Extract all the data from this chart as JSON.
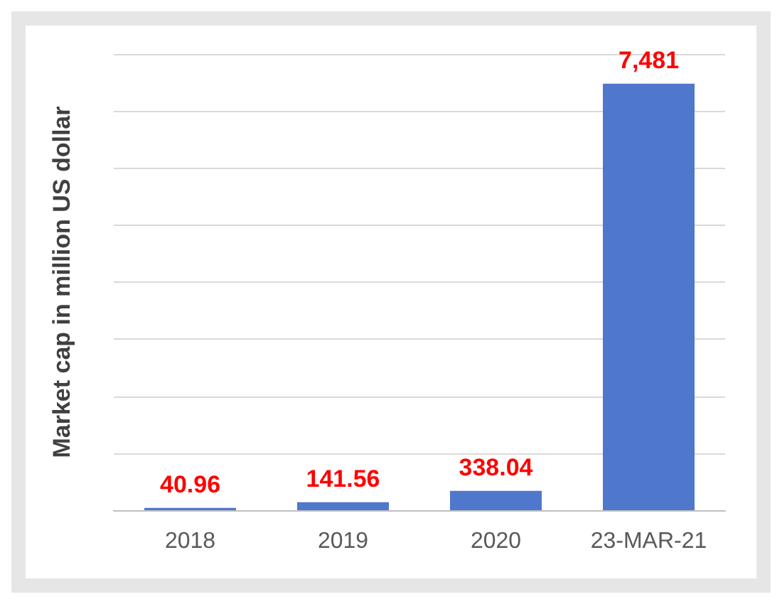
{
  "chart_data": {
    "type": "bar",
    "ylabel": "Market cap in million US dollar",
    "categories": [
      "2018",
      "2019",
      "2020",
      "23-MAR-21"
    ],
    "values": [
      40.96,
      141.56,
      338.04,
      7481
    ],
    "value_labels": [
      "40.96",
      "141.56",
      "338.04",
      "7,481"
    ],
    "color": "#4f78cc",
    "ylim": [
      0,
      8000
    ],
    "yticks": [
      {
        "value": 0,
        "label": null
      },
      {
        "value": 1000,
        "label": null
      },
      {
        "value": 2000,
        "label": null
      },
      {
        "value": 3000,
        "label": null
      },
      {
        "value": 4000,
        "label": null
      },
      {
        "value": 5000,
        "label": null
      },
      {
        "value": 6000,
        "label": null
      },
      {
        "value": 7000,
        "label": null
      },
      {
        "value": 8000,
        "label": null
      }
    ],
    "grid": "y",
    "tick_labels": "x"
  }
}
